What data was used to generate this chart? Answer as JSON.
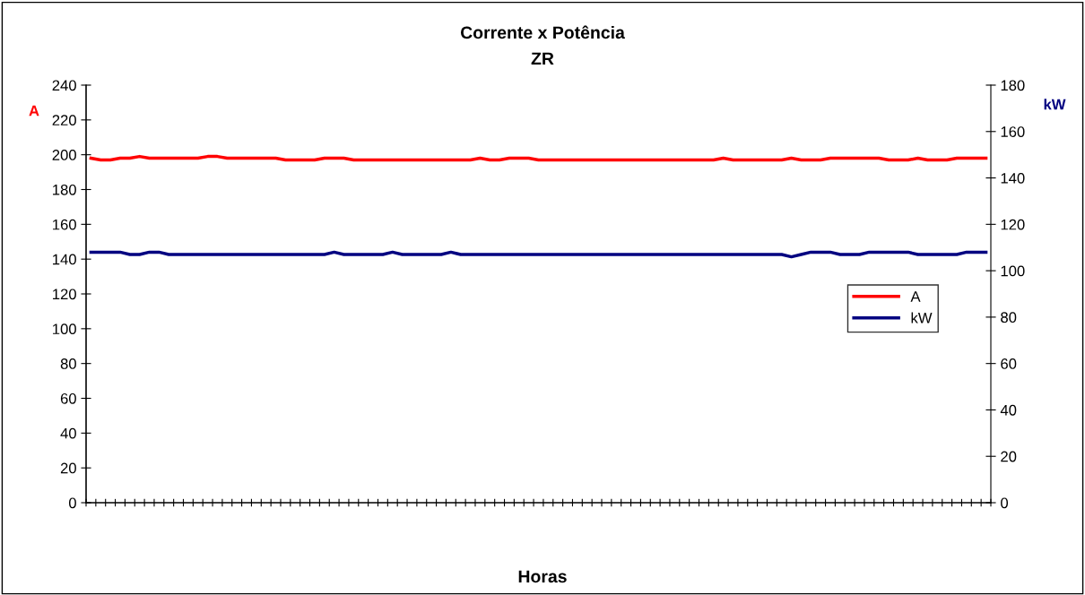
{
  "chart_data": {
    "type": "line",
    "title": "Corrente x Potência",
    "subtitle": "ZR",
    "xlabel": "Horas",
    "ylabel": "A",
    "y2label": "kW",
    "categories": [
      null,
      null,
      null,
      null,
      null,
      null,
      null,
      null,
      null,
      null,
      null,
      null,
      null,
      null,
      null,
      null,
      null,
      null,
      null,
      null,
      null,
      null,
      null,
      null,
      null,
      null,
      null,
      null,
      null,
      null,
      null,
      null,
      null,
      null,
      null,
      null,
      null,
      null,
      null,
      null,
      null,
      null,
      null,
      null,
      null,
      null,
      null,
      null,
      null,
      null,
      null,
      null,
      null,
      null,
      null,
      null,
      null,
      null,
      null,
      null,
      null,
      null,
      null,
      null,
      null,
      null,
      null,
      null,
      null,
      null,
      null,
      null,
      null,
      null,
      null,
      null,
      null,
      null,
      null,
      null,
      null,
      null,
      null,
      null,
      null,
      null,
      null,
      null,
      null,
      null,
      null,
      null,
      null
    ],
    "series": [
      {
        "name": "A",
        "color": "#ff0000",
        "values": [
          198,
          197,
          197,
          198,
          198,
          199,
          198,
          198,
          198,
          198,
          198,
          198,
          199,
          199,
          198,
          198,
          198,
          198,
          198,
          198,
          197,
          197,
          197,
          197,
          198,
          198,
          198,
          197,
          197,
          197,
          197,
          197,
          197,
          197,
          197,
          197,
          197,
          197,
          197,
          197,
          198,
          197,
          197,
          198,
          198,
          198,
          197,
          197,
          197,
          197,
          197,
          197,
          197,
          197,
          197,
          197,
          197,
          197,
          197,
          197,
          197,
          197,
          197,
          197,
          197,
          198,
          197,
          197,
          197,
          197,
          197,
          197,
          198,
          197,
          197,
          197,
          198,
          198,
          198,
          198,
          198,
          198,
          197,
          197,
          197,
          198,
          197,
          197,
          197,
          198,
          198,
          198,
          198
        ]
      },
      {
        "name": "kW",
        "color": "#000080",
        "axis": "y2",
        "values": [
          108,
          108,
          108,
          108,
          107,
          107,
          108,
          108,
          107,
          107,
          107,
          107,
          107,
          107,
          107,
          107,
          107,
          107,
          107,
          107,
          107,
          107,
          107,
          107,
          107,
          108,
          107,
          107,
          107,
          107,
          107,
          108,
          107,
          107,
          107,
          107,
          107,
          108,
          107,
          107,
          107,
          107,
          107,
          107,
          107,
          107,
          107,
          107,
          107,
          107,
          107,
          107,
          107,
          107,
          107,
          107,
          107,
          107,
          107,
          107,
          107,
          107,
          107,
          107,
          107,
          107,
          107,
          107,
          107,
          107,
          107,
          107,
          106,
          107,
          108,
          108,
          108,
          107,
          107,
          107,
          108,
          108,
          108,
          108,
          108,
          107,
          107,
          107,
          107,
          107,
          108,
          108,
          108
        ]
      }
    ],
    "ylim": [
      0,
      240
    ],
    "yticks": [
      0,
      20,
      40,
      60,
      80,
      100,
      120,
      140,
      160,
      180,
      200,
      220,
      240
    ],
    "y2lim": [
      0,
      180
    ],
    "y2ticks": [
      0,
      20,
      40,
      60,
      80,
      100,
      120,
      140,
      160,
      180
    ],
    "grid": false,
    "legend": "right",
    "tick_labels": "y",
    "marker": "none",
    "line_style": "solid"
  }
}
